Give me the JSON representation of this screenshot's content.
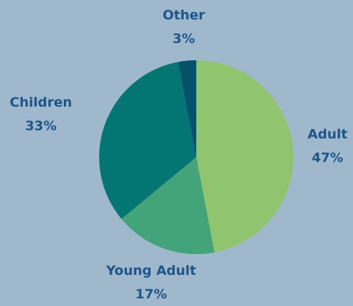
{
  "chart_data": {
    "type": "pie",
    "title": "",
    "slices": [
      {
        "label": "Adult",
        "value": 47,
        "display": "47%",
        "color": "#90c46f"
      },
      {
        "label": "Young Adult",
        "value": 17,
        "display": "17%",
        "color": "#43a379"
      },
      {
        "label": "Children",
        "value": 33,
        "display": "33%",
        "color": "#037673"
      },
      {
        "label": "Other",
        "value": 3,
        "display": "3%",
        "color": "#05516a"
      }
    ],
    "start_angle_deg": 0,
    "direction": "clockwise",
    "legend": "none",
    "label_color": "#1d5689",
    "background_color": "#9fb8cc"
  }
}
